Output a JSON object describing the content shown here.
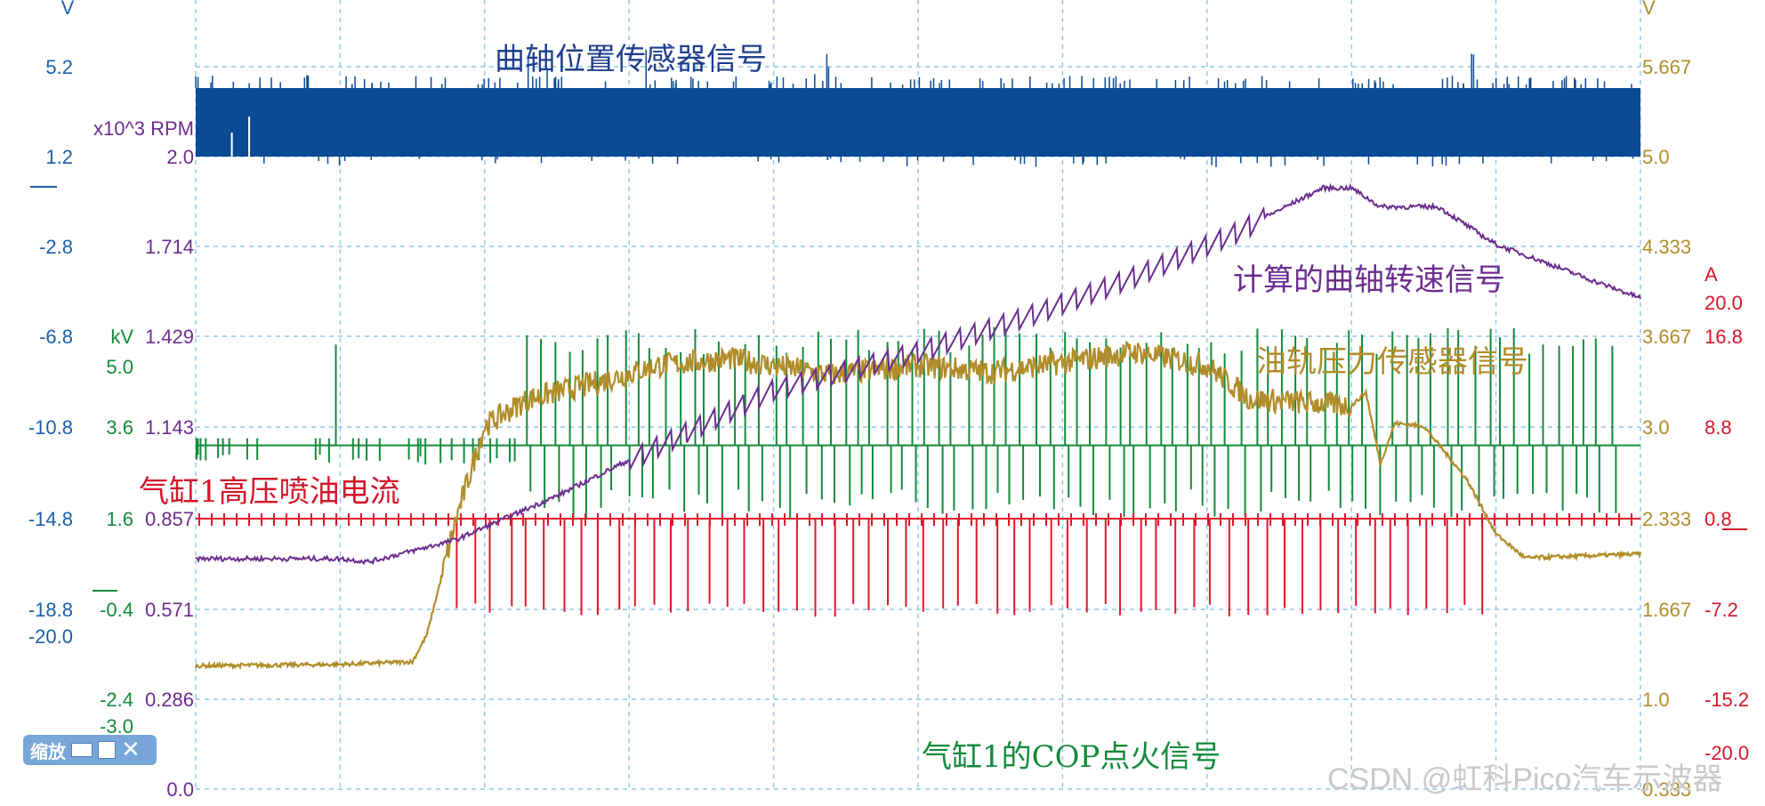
{
  "chart_data": {
    "type": "line",
    "x_grid_divisions": 10,
    "grid": true,
    "axes": {
      "v_left": {
        "unit": "V",
        "ticks": [
          "5.2",
          "1.2",
          "-2.8",
          "-6.8",
          "-10.8",
          "-14.8",
          "-18.8"
        ],
        "extra": "-20.0"
      },
      "rpm": {
        "unit": "x10^3 RPM",
        "ticks": [
          "2.0",
          "1.714",
          "1.429",
          "1.143",
          "0.857",
          "0.571",
          "0.286",
          "0.0"
        ]
      },
      "kv": {
        "unit": "kV",
        "ticks": [
          "5.0",
          "3.6",
          "1.6",
          "-0.4",
          "-2.4",
          "-3.0"
        ]
      },
      "v_right": {
        "unit": "V",
        "ticks": [
          "5.667",
          "5.0",
          "4.333",
          "3.667",
          "3.0",
          "2.333",
          "1.667",
          "1.0",
          "0.333"
        ]
      },
      "amp": {
        "unit": "A",
        "ticks": [
          "20.0",
          "16.8",
          "8.8",
          "0.8",
          "-7.2",
          "-15.2",
          "-20.0"
        ]
      }
    },
    "series": [
      {
        "name": "曲轴位置传感器信号",
        "color": "#0b4a94",
        "kind": "square_wave_band",
        "low_v": 1.2,
        "high_v": 5.2
      },
      {
        "name": "计算的曲轴转速信号",
        "color": "#6b2d8e",
        "kind": "line",
        "x": [
          0,
          0.1,
          0.12,
          0.18,
          0.25,
          0.32,
          0.4,
          0.5,
          0.58,
          0.65,
          0.72,
          0.78,
          0.8,
          0.82,
          0.83,
          0.86,
          0.9,
          0.93,
          0.97,
          1.0
        ],
        "y_rpm": [
          0.72,
          0.72,
          0.71,
          0.78,
          0.92,
          1.08,
          1.26,
          1.38,
          1.5,
          1.62,
          1.76,
          1.9,
          1.9,
          1.84,
          1.84,
          1.84,
          1.72,
          1.67,
          1.6,
          1.55
        ]
      },
      {
        "name": "油轨压力传感器信号",
        "color": "#b08d2a",
        "kind": "line",
        "x": [
          0,
          0.1,
          0.15,
          0.16,
          0.18,
          0.2,
          0.23,
          0.28,
          0.32,
          0.37,
          0.44,
          0.5,
          0.55,
          0.6,
          0.65,
          0.7,
          0.73,
          0.8,
          0.81,
          0.82,
          0.83,
          0.85,
          0.88,
          0.9,
          0.92,
          1.0
        ],
        "y_v": [
          1.22,
          1.23,
          1.25,
          1.45,
          2.3,
          3.0,
          3.2,
          3.33,
          3.45,
          3.5,
          3.38,
          3.45,
          3.4,
          3.47,
          3.55,
          3.45,
          3.2,
          3.15,
          3.25,
          2.72,
          3.02,
          3.0,
          2.6,
          2.2,
          2.02,
          2.05
        ]
      },
      {
        "name": "气缸1高压喷油电流",
        "color": "#e0162b",
        "kind": "pulses",
        "baseline_a": 0.8,
        "pulse_a": 8.8,
        "start": 0.18,
        "end": 0.89,
        "count": 58
      },
      {
        "name": "气缸1的COP点火信号",
        "color": "#148a3c",
        "kind": "pulses",
        "baseline_kv": 0,
        "up_kv": 1.6,
        "down_kv": -2.4,
        "start": 0.23,
        "end": 0.98,
        "count": 80
      }
    ]
  },
  "ui": {
    "zoom_label": "缩放",
    "close_glyph": "✕",
    "watermark": "CSDN @虹科Pico汽车示波器"
  }
}
